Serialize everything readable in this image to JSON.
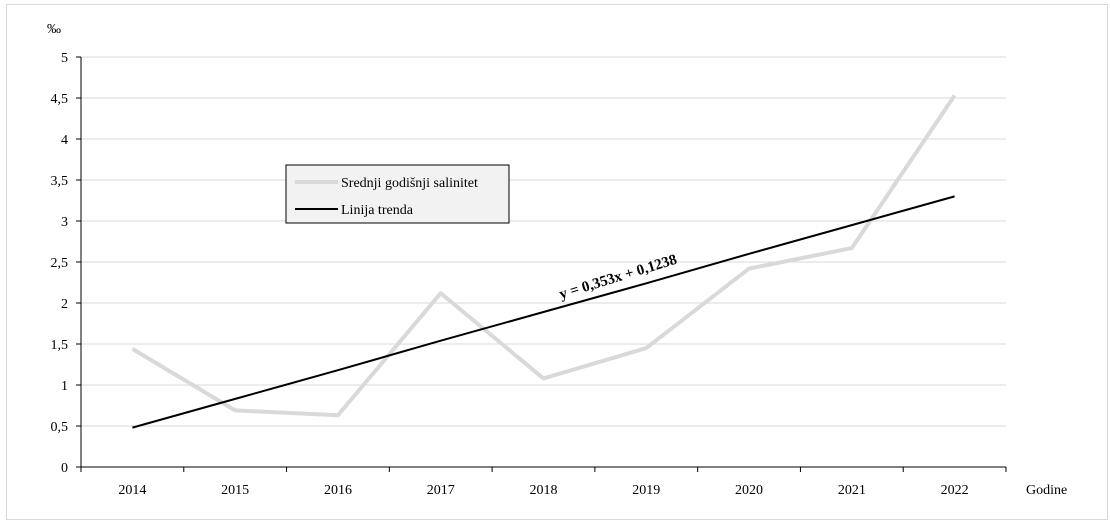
{
  "chart_data": {
    "type": "line",
    "x": [
      "2014",
      "2015",
      "2016",
      "2017",
      "2018",
      "2019",
      "2020",
      "2021",
      "2022"
    ],
    "ylabel": "‰",
    "xlabel": "Godine",
    "ylim": [
      0,
      5
    ],
    "y_ticks": [
      "0",
      "0,5",
      "1",
      "1,5",
      "2",
      "2,5",
      "3",
      "3,5",
      "4",
      "4,5",
      "5"
    ],
    "y_tick_values": [
      0,
      0.5,
      1,
      1.5,
      2,
      2.5,
      3,
      3.5,
      4,
      4.5,
      5
    ],
    "grid": true,
    "legend_position": "upper-left",
    "series": [
      {
        "name": "Srednji godišnji salinitet",
        "values": [
          1.44,
          0.69,
          0.63,
          2.12,
          1.08,
          1.45,
          2.42,
          2.67,
          4.53
        ],
        "color": "#d9d9d9"
      },
      {
        "name": "Linija trenda",
        "values": [
          0.48,
          0.83,
          1.18,
          1.54,
          1.89,
          2.24,
          2.6,
          2.95,
          3.3
        ],
        "color": "#000000"
      }
    ],
    "annotations": [
      {
        "text": "y = 0,353x + 0,1238"
      }
    ]
  }
}
